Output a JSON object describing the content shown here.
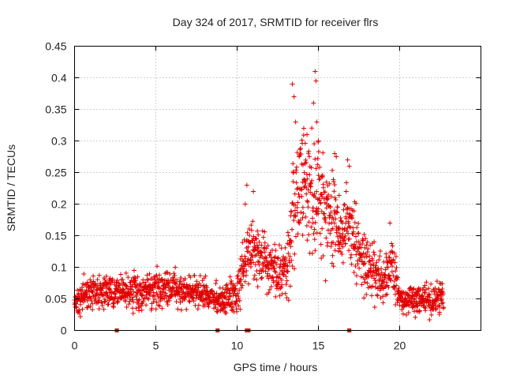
{
  "chart_data": {
    "type": "scatter",
    "title": "Day 324 of 2017, SRMTID for receiver flrs",
    "xlabel": "GPS time / hours",
    "ylabel": "SRMTID / TECUs",
    "xlim": [
      0,
      25
    ],
    "ylim": [
      0,
      0.45
    ],
    "xticks": [
      "0",
      "5",
      "10",
      "15",
      "20"
    ],
    "xtick_values": [
      0,
      5,
      10,
      15,
      20
    ],
    "yticks": [
      "0",
      "0.05",
      "0.1",
      "0.15",
      "0.2",
      "0.25",
      "0.3",
      "0.35",
      "0.4",
      "0.45"
    ],
    "ytick_values": [
      0,
      0.05,
      0.1,
      0.15,
      0.2,
      0.25,
      0.3,
      0.35,
      0.4,
      0.45
    ],
    "grid": true,
    "marker": "plus",
    "color": "#e00000",
    "x_range_of_data": [
      0,
      22.7
    ],
    "envelope": [
      {
        "hour": 0.0,
        "center": 0.04,
        "spread": 0.018
      },
      {
        "hour": 0.5,
        "center": 0.055,
        "spread": 0.03
      },
      {
        "hour": 1.0,
        "center": 0.062,
        "spread": 0.03
      },
      {
        "hour": 2.0,
        "center": 0.06,
        "spread": 0.03
      },
      {
        "hour": 3.0,
        "center": 0.058,
        "spread": 0.028
      },
      {
        "hour": 4.0,
        "center": 0.06,
        "spread": 0.028
      },
      {
        "hour": 5.0,
        "center": 0.065,
        "spread": 0.03
      },
      {
        "hour": 6.0,
        "center": 0.065,
        "spread": 0.03
      },
      {
        "hour": 7.0,
        "center": 0.062,
        "spread": 0.028
      },
      {
        "hour": 8.0,
        "center": 0.058,
        "spread": 0.025
      },
      {
        "hour": 9.0,
        "center": 0.045,
        "spread": 0.025
      },
      {
        "hour": 10.0,
        "center": 0.055,
        "spread": 0.03
      },
      {
        "hour": 10.5,
        "center": 0.11,
        "spread": 0.05
      },
      {
        "hour": 11.0,
        "center": 0.13,
        "spread": 0.05
      },
      {
        "hour": 12.0,
        "center": 0.095,
        "spread": 0.045
      },
      {
        "hour": 13.0,
        "center": 0.09,
        "spread": 0.05
      },
      {
        "hour": 13.5,
        "center": 0.2,
        "spread": 0.1
      },
      {
        "hour": 14.0,
        "center": 0.25,
        "spread": 0.09
      },
      {
        "hour": 15.0,
        "center": 0.2,
        "spread": 0.11
      },
      {
        "hour": 16.0,
        "center": 0.17,
        "spread": 0.06
      },
      {
        "hour": 17.0,
        "center": 0.16,
        "spread": 0.06
      },
      {
        "hour": 18.0,
        "center": 0.1,
        "spread": 0.05
      },
      {
        "hour": 19.0,
        "center": 0.08,
        "spread": 0.04
      },
      {
        "hour": 19.5,
        "center": 0.11,
        "spread": 0.06
      },
      {
        "hour": 20.0,
        "center": 0.05,
        "spread": 0.025
      },
      {
        "hour": 21.0,
        "center": 0.05,
        "spread": 0.025
      },
      {
        "hour": 22.0,
        "center": 0.045,
        "spread": 0.025
      },
      {
        "hour": 22.7,
        "center": 0.055,
        "spread": 0.03
      }
    ],
    "peak_points": [
      {
        "x": 13.4,
        "y": 0.39
      },
      {
        "x": 13.5,
        "y": 0.37
      },
      {
        "x": 13.6,
        "y": 0.33
      },
      {
        "x": 14.1,
        "y": 0.32
      },
      {
        "x": 14.3,
        "y": 0.31
      },
      {
        "x": 14.7,
        "y": 0.36
      },
      {
        "x": 14.8,
        "y": 0.41
      },
      {
        "x": 14.85,
        "y": 0.395
      },
      {
        "x": 14.9,
        "y": 0.33
      },
      {
        "x": 15.0,
        "y": 0.3
      },
      {
        "x": 16.0,
        "y": 0.28
      },
      {
        "x": 16.1,
        "y": 0.275
      },
      {
        "x": 16.8,
        "y": 0.27
      },
      {
        "x": 16.9,
        "y": 0.26
      },
      {
        "x": 19.4,
        "y": 0.17
      },
      {
        "x": 10.6,
        "y": 0.23
      },
      {
        "x": 11.0,
        "y": 0.22
      },
      {
        "x": 10.5,
        "y": 0.2
      }
    ],
    "zero_markers": [
      2.6,
      8.8,
      10.6,
      10.7,
      16.9
    ]
  }
}
